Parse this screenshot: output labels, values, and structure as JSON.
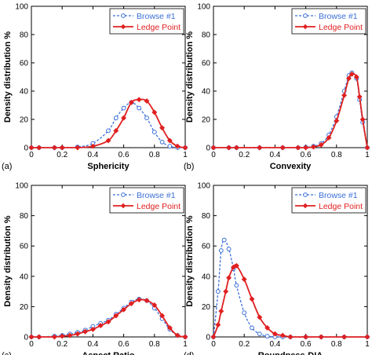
{
  "colors": {
    "browse": "#3a6fd8",
    "ledge": "#e02020",
    "axis": "#000000",
    "legend_border": "#000000"
  },
  "chart_data": [
    {
      "panel": "(a)",
      "type": "line",
      "xlabel": "Sphericity",
      "ylabel": "Density distribution %",
      "xlim": [
        0,
        1
      ],
      "ylim": [
        0,
        100
      ],
      "xticks": [
        "0",
        "0.2",
        "0.4",
        "0.6",
        "0.8",
        "1"
      ],
      "yticks": [
        "0",
        "20",
        "40",
        "60",
        "80",
        "100"
      ],
      "grid": false,
      "legend_position": "top-right",
      "series": [
        {
          "name": "Browse #1",
          "x": [
            0.0,
            0.05,
            0.15,
            0.2,
            0.3,
            0.4,
            0.5,
            0.55,
            0.6,
            0.65,
            0.7,
            0.75,
            0.8,
            0.85,
            0.9,
            0.95,
            1.0
          ],
          "y": [
            0,
            0,
            0,
            0,
            0.5,
            3,
            12,
            21,
            28,
            32,
            28,
            21,
            11,
            4,
            1,
            0,
            0
          ]
        },
        {
          "name": "Ledge Point",
          "x": [
            0.0,
            0.05,
            0.15,
            0.2,
            0.3,
            0.4,
            0.5,
            0.55,
            0.6,
            0.65,
            0.7,
            0.75,
            0.8,
            0.85,
            0.9,
            0.95,
            1.0
          ],
          "y": [
            0,
            0,
            0,
            0,
            0,
            1,
            5,
            12,
            21,
            32,
            34,
            33,
            25,
            14,
            5,
            1,
            0
          ]
        }
      ]
    },
    {
      "panel": "(b)",
      "type": "line",
      "xlabel": "Convexity",
      "ylabel": "Density distribution %",
      "xlim": [
        0,
        1
      ],
      "ylim": [
        0,
        100
      ],
      "xticks": [
        "0",
        "0.2",
        "0.4",
        "0.6",
        "0.8",
        "1"
      ],
      "yticks": [
        "0",
        "20",
        "40",
        "60",
        "80",
        "100"
      ],
      "grid": false,
      "legend_position": "top-right",
      "series": [
        {
          "name": "Browse #1",
          "x": [
            0.0,
            0.1,
            0.15,
            0.3,
            0.45,
            0.55,
            0.6,
            0.65,
            0.7,
            0.75,
            0.8,
            0.85,
            0.88,
            0.9,
            0.93,
            0.95,
            0.97,
            1.0
          ],
          "y": [
            0,
            0,
            0,
            0,
            0,
            0,
            0.3,
            1,
            3,
            9,
            22,
            40,
            51,
            53,
            49,
            34,
            18,
            0
          ]
        },
        {
          "name": "Ledge Point",
          "x": [
            0.0,
            0.1,
            0.15,
            0.3,
            0.45,
            0.55,
            0.6,
            0.65,
            0.7,
            0.75,
            0.8,
            0.85,
            0.88,
            0.9,
            0.93,
            0.95,
            0.97,
            1.0
          ],
          "y": [
            0,
            0,
            0,
            0,
            0,
            0,
            0,
            0.5,
            2,
            7,
            19,
            37,
            49,
            52,
            50,
            36,
            20,
            0
          ]
        }
      ]
    },
    {
      "panel": "(c)",
      "type": "line",
      "xlabel": "Aspect Ratio",
      "ylabel": "Density distribution %",
      "xlim": [
        0,
        1
      ],
      "ylim": [
        0,
        100
      ],
      "xticks": [
        "0",
        "0.2",
        "0.4",
        "0.6",
        "0.8",
        "1"
      ],
      "yticks": [
        "0",
        "20",
        "40",
        "60",
        "80",
        "100"
      ],
      "grid": false,
      "legend_position": "top-right",
      "series": [
        {
          "name": "Browse #1",
          "x": [
            0.0,
            0.05,
            0.15,
            0.2,
            0.25,
            0.3,
            0.35,
            0.4,
            0.45,
            0.5,
            0.55,
            0.6,
            0.65,
            0.7,
            0.75,
            0.8,
            0.85,
            0.9,
            0.95,
            1.0
          ],
          "y": [
            0,
            0,
            0.5,
            1,
            2,
            3,
            4.5,
            7,
            9,
            11,
            15,
            19,
            23,
            25,
            24,
            19,
            12,
            5,
            1,
            0
          ]
        },
        {
          "name": "Ledge Point",
          "x": [
            0.0,
            0.05,
            0.15,
            0.2,
            0.25,
            0.3,
            0.35,
            0.4,
            0.45,
            0.5,
            0.55,
            0.6,
            0.65,
            0.7,
            0.75,
            0.8,
            0.85,
            0.9,
            0.95,
            1.0
          ],
          "y": [
            0,
            0,
            0,
            0.5,
            1,
            2,
            3.5,
            5,
            7.5,
            10,
            14,
            18,
            22,
            24.5,
            24,
            21,
            14,
            6,
            1,
            0
          ]
        }
      ]
    },
    {
      "panel": "(d)",
      "type": "line",
      "xlabel": "Roundness-DIA",
      "ylabel": "Density distribution %",
      "xlim": [
        0,
        1
      ],
      "ylim": [
        0,
        100
      ],
      "xticks": [
        "0",
        "0.2",
        "0.4",
        "0.6",
        "0.8",
        "1"
      ],
      "yticks": [
        "0",
        "20",
        "40",
        "60",
        "80",
        "100"
      ],
      "grid": false,
      "legend_position": "top-right",
      "series": [
        {
          "name": "Browse #1",
          "x": [
            0.0,
            0.03,
            0.05,
            0.07,
            0.1,
            0.13,
            0.15,
            0.2,
            0.25,
            0.3,
            0.35,
            0.4,
            0.45,
            0.5,
            0.6,
            0.7,
            0.85,
            1.0
          ],
          "y": [
            0,
            30,
            57,
            64,
            58,
            45,
            34,
            16,
            6,
            2,
            0.5,
            0,
            0,
            0,
            0,
            0,
            0,
            0
          ]
        },
        {
          "name": "Ledge Point",
          "x": [
            0.0,
            0.03,
            0.05,
            0.08,
            0.1,
            0.13,
            0.15,
            0.2,
            0.25,
            0.3,
            0.35,
            0.4,
            0.45,
            0.5,
            0.6,
            0.7,
            0.85,
            1.0
          ],
          "y": [
            0,
            8,
            17,
            30,
            39,
            46,
            47,
            38,
            25,
            13,
            6,
            2,
            1,
            0,
            0,
            0,
            0,
            0
          ]
        }
      ]
    }
  ]
}
